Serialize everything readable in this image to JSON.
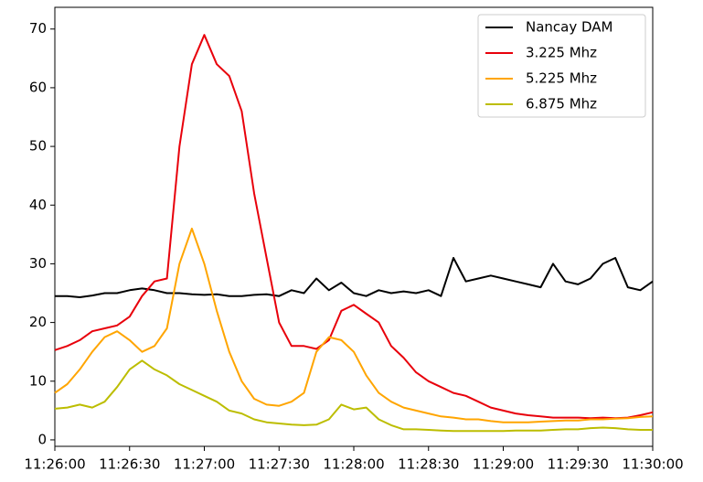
{
  "chart_data": {
    "type": "line",
    "x": [
      "11:26:00",
      "11:26:05",
      "11:26:10",
      "11:26:15",
      "11:26:20",
      "11:26:25",
      "11:26:30",
      "11:26:35",
      "11:26:40",
      "11:26:45",
      "11:26:50",
      "11:26:55",
      "11:27:00",
      "11:27:05",
      "11:27:10",
      "11:27:15",
      "11:27:20",
      "11:27:25",
      "11:27:30",
      "11:27:35",
      "11:27:40",
      "11:27:45",
      "11:27:50",
      "11:27:55",
      "11:28:00",
      "11:28:05",
      "11:28:10",
      "11:28:15",
      "11:28:20",
      "11:28:25",
      "11:28:30",
      "11:28:35",
      "11:28:40",
      "11:28:45",
      "11:28:50",
      "11:28:55",
      "11:29:00",
      "11:29:05",
      "11:29:10",
      "11:29:15",
      "11:29:20",
      "11:29:25",
      "11:29:30",
      "11:29:35",
      "11:29:40",
      "11:29:45",
      "11:29:50",
      "11:29:55",
      "11:30:00"
    ],
    "series": [
      {
        "name": "Nancay DAM",
        "color": "#000000",
        "values": [
          24.5,
          24.5,
          24.3,
          24.6,
          25,
          25,
          25.5,
          25.8,
          25.5,
          25,
          25,
          24.8,
          24.7,
          24.8,
          24.5,
          24.5,
          24.7,
          24.8,
          24.5,
          25.5,
          25,
          27.5,
          25.5,
          26.8,
          25,
          24.5,
          25.5,
          25,
          25.3,
          25,
          25.5,
          24.5,
          31,
          27,
          27.5,
          28,
          27.5,
          27,
          26.5,
          26,
          30,
          27,
          26.5,
          27.5,
          30,
          31,
          26,
          25.5,
          27
        ]
      },
      {
        "name": "3.225 Mhz",
        "color": "#e8000b",
        "values": [
          15.3,
          16,
          17,
          18.5,
          19,
          19.5,
          21,
          24.5,
          27,
          27.5,
          50,
          64,
          69,
          64,
          62,
          56,
          42,
          31,
          20,
          16,
          16,
          15.5,
          17,
          22,
          23,
          21.5,
          20,
          16,
          14,
          11.5,
          10,
          9,
          8,
          7.5,
          6.5,
          5.5,
          5,
          4.5,
          4.2,
          4,
          3.8,
          3.8,
          3.8,
          3.7,
          3.8,
          3.7,
          3.8,
          4.2,
          4.7
        ]
      },
      {
        "name": "5.225 Mhz",
        "color": "#ffa500",
        "values": [
          8,
          9.5,
          12,
          15,
          17.5,
          18.5,
          17,
          15,
          16,
          19,
          30,
          36,
          30,
          22,
          15,
          10,
          7,
          6,
          5.8,
          6.5,
          8,
          15,
          17.5,
          17,
          15,
          11,
          8,
          6.5,
          5.5,
          5,
          4.5,
          4,
          3.8,
          3.5,
          3.5,
          3.2,
          3,
          3,
          3,
          3.1,
          3.2,
          3.3,
          3.3,
          3.5,
          3.5,
          3.6,
          3.7,
          3.9,
          4
        ]
      },
      {
        "name": "6.875 Mhz",
        "color": "#bcbd00",
        "values": [
          5.3,
          5.5,
          6,
          5.5,
          6.5,
          9,
          12,
          13.5,
          12,
          11,
          9.5,
          8.5,
          7.5,
          6.5,
          5,
          4.5,
          3.5,
          3,
          2.8,
          2.6,
          2.5,
          2.6,
          3.5,
          6,
          5.2,
          5.5,
          3.5,
          2.5,
          1.8,
          1.8,
          1.7,
          1.6,
          1.5,
          1.5,
          1.5,
          1.5,
          1.5,
          1.6,
          1.6,
          1.6,
          1.7,
          1.8,
          1.8,
          2,
          2.1,
          2,
          1.8,
          1.7,
          1.7
        ]
      }
    ],
    "xlim": [
      "11:26:00",
      "11:30:00"
    ],
    "xticks": [
      "11:26:00",
      "11:26:30",
      "11:27:00",
      "11:27:30",
      "11:28:00",
      "11:28:30",
      "11:29:00",
      "11:29:30",
      "11:30:00"
    ],
    "ylim": [
      -1.1,
      73.7
    ],
    "yticks": [
      0,
      10,
      20,
      30,
      40,
      50,
      60,
      70
    ],
    "legend": "upper right"
  }
}
